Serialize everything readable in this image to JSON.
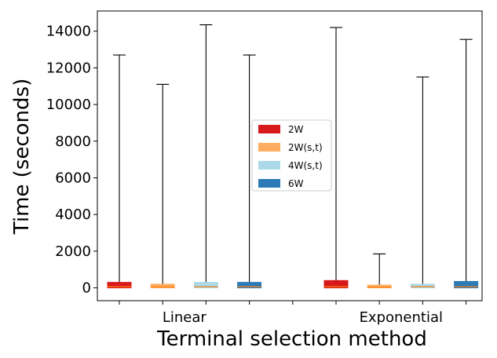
{
  "chart_data": {
    "type": "box",
    "xlabel": "Terminal selection method",
    "ylabel": "Time (seconds)",
    "ylim": [
      -700,
      15100
    ],
    "yticks": [
      0,
      2000,
      4000,
      6000,
      8000,
      10000,
      12000,
      14000
    ],
    "tick_labels": [
      "0",
      "2000",
      "4000",
      "6000",
      "8000",
      "10000",
      "12000",
      "14000"
    ],
    "groups": [
      "Linear",
      "Exponential"
    ],
    "series_names": [
      "2W",
      "2W(s,t)",
      "4W(s,t)",
      "6W"
    ],
    "colors": {
      "2W": "#d7191c",
      "2W(s,t)": "#fdae61",
      "4W(s,t)": "#abd9e9",
      "6W": "#2c7bb6"
    },
    "legend_position": "center-right",
    "boxes": [
      {
        "group": "Linear",
        "series": "2W",
        "whislo": 0,
        "q1": 0,
        "median": 60,
        "q3": 300,
        "whishi": 12700
      },
      {
        "group": "Linear",
        "series": "2W(s,t)",
        "whislo": 0,
        "q1": 0,
        "median": 50,
        "q3": 200,
        "whishi": 11100
      },
      {
        "group": "Linear",
        "series": "4W(s,t)",
        "whislo": 0,
        "q1": 0,
        "median": 60,
        "q3": 300,
        "whishi": 14350
      },
      {
        "group": "Linear",
        "series": "6W",
        "whislo": 0,
        "q1": 0,
        "median": 60,
        "q3": 300,
        "whishi": 12700
      },
      {
        "group": "Exponential",
        "series": "2W",
        "whislo": 0,
        "q1": 0,
        "median": 60,
        "q3": 400,
        "whishi": 14200
      },
      {
        "group": "Exponential",
        "series": "2W(s,t)",
        "whislo": 0,
        "q1": 0,
        "median": 40,
        "q3": 150,
        "whishi": 1850
      },
      {
        "group": "Exponential",
        "series": "4W(s,t)",
        "whislo": 0,
        "q1": 0,
        "median": 60,
        "q3": 200,
        "whishi": 11500
      },
      {
        "group": "Exponential",
        "series": "6W",
        "whislo": 0,
        "q1": 0,
        "median": 60,
        "q3": 350,
        "whishi": 13550
      }
    ]
  }
}
